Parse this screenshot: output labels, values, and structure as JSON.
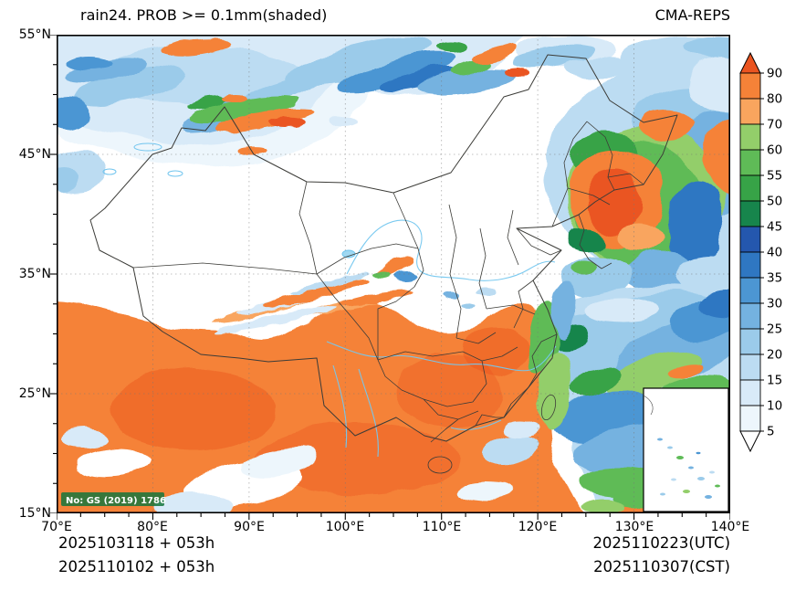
{
  "header": {
    "title_left": "rain24. PROB >= 0.1mm(shaded)",
    "title_right": "CMA-REPS"
  },
  "axes": {
    "y_labels": [
      "55°N",
      "45°N",
      "35°N",
      "25°N",
      "15°N"
    ],
    "x_labels": [
      "70°E",
      "80°E",
      "90°E",
      "100°E",
      "110°E",
      "120°E",
      "130°E",
      "140°E"
    ]
  },
  "colorbar": {
    "tick_labels": [
      "90",
      "80",
      "70",
      "60",
      "55",
      "50",
      "45",
      "40",
      "35",
      "30",
      "25",
      "20",
      "15",
      "10",
      "5"
    ],
    "arrow_top_color": "#ea5420",
    "segment_colors_top_to_bottom": [
      "#f58238",
      "#f9a55e",
      "#93ce6a",
      "#5fbb57",
      "#37a347",
      "#17854c",
      "#2457ae",
      "#2f77c2",
      "#4c96d3",
      "#74b2e0",
      "#9bcbea",
      "#bcdcf2",
      "#d8eaf8",
      "#edf6fc"
    ],
    "arrow_bottom_color": "#ffffff"
  },
  "map": {
    "watermark": "No: GS (2019) 1786"
  },
  "footer": {
    "left_line1": "2025103118 + 053h",
    "left_line2": "2025110102 + 053h",
    "right_line1": "2025110223(UTC)",
    "right_line2": "2025110307(CST)"
  }
}
